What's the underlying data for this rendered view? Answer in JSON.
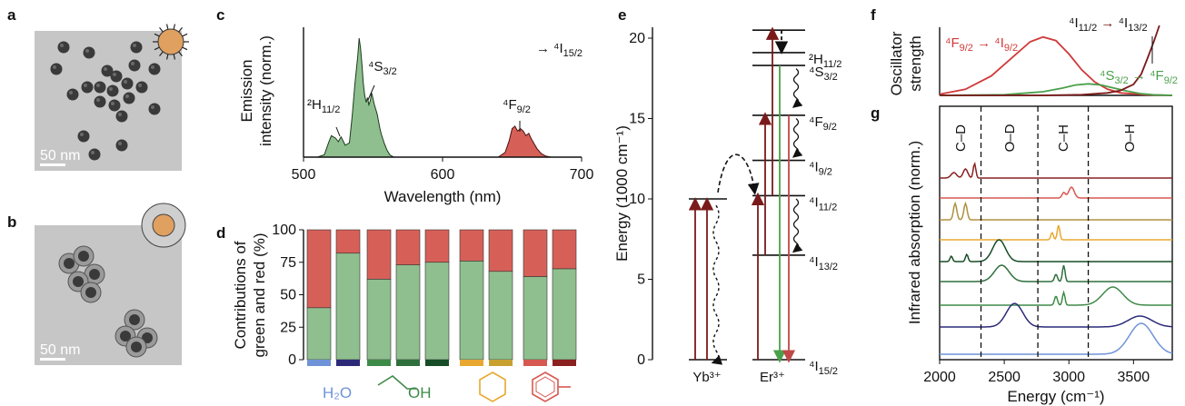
{
  "panels": {
    "a": {
      "label": "a",
      "scalebar": "50 nm"
    },
    "b": {
      "label": "b",
      "scalebar": "50 nm"
    },
    "c": {
      "label": "c"
    },
    "d": {
      "label": "d"
    },
    "e": {
      "label": "e"
    },
    "f": {
      "label": "f"
    },
    "g": {
      "label": "g"
    }
  },
  "colors": {
    "green": "#8fbf8f",
    "red": "#d66058",
    "darkred": "#7a1a1a",
    "curve_red": "#d03a3a",
    "curve_green": "#4aa04a",
    "particle": "#e0a060"
  },
  "chart_data": [
    {
      "id": "c",
      "type": "area",
      "xlabel": "Wavelength (nm)",
      "ylabel_line1": "Emission",
      "ylabel_line2": "intensity (norm.)",
      "xlim": [
        500,
        700
      ],
      "xticks": [
        500,
        600,
        700
      ],
      "ylim": [
        0,
        1
      ],
      "annotations": {
        "h11": {
          "main": "²H",
          "sub": "11/2"
        },
        "s32": {
          "main": "⁴S",
          "sub": "3/2"
        },
        "f92": {
          "main": "⁴F",
          "sub": "9/2"
        },
        "target": {
          "prefix": "→",
          "main": "⁴I",
          "sub": "15/2"
        }
      },
      "green_band": {
        "x": [
          510,
          515,
          518,
          520,
          523,
          525,
          527,
          530,
          533,
          535,
          537,
          539,
          540,
          541,
          542,
          543,
          544,
          545,
          546,
          547,
          548,
          549,
          550,
          551,
          552,
          553,
          554,
          555,
          556,
          558,
          560,
          562,
          565
        ],
        "y": [
          0,
          0.02,
          0.12,
          0.18,
          0.16,
          0.13,
          0.17,
          0.1,
          0.12,
          0.35,
          0.62,
          0.85,
          1.0,
          0.92,
          0.78,
          0.62,
          0.52,
          0.46,
          0.5,
          0.44,
          0.47,
          0.54,
          0.49,
          0.44,
          0.4,
          0.36,
          0.3,
          0.24,
          0.19,
          0.12,
          0.06,
          0.02,
          0
        ]
      },
      "red_band": {
        "x": [
          640,
          645,
          648,
          650,
          652,
          654,
          656,
          658,
          660,
          662,
          664,
          666,
          668,
          671,
          674,
          678
        ],
        "y": [
          0,
          0.04,
          0.14,
          0.24,
          0.26,
          0.22,
          0.24,
          0.22,
          0.18,
          0.2,
          0.15,
          0.11,
          0.07,
          0.03,
          0.01,
          0
        ]
      }
    },
    {
      "id": "d",
      "type": "bar",
      "ylabel_line1": "Contributions of",
      "ylabel_line2": "green and red (%)",
      "ylim": [
        0,
        100
      ],
      "yticks": [
        0,
        25,
        50,
        75,
        100
      ],
      "series": [
        {
          "values": [
            40,
            82,
            62,
            73,
            75,
            76,
            68,
            64,
            70
          ]
        },
        {
          "values": [
            60,
            18,
            38,
            27,
            25,
            24,
            32,
            36,
            30
          ]
        }
      ],
      "category_colors": [
        "#6f93d8",
        "#2c2a78",
        "#3e8a48",
        "#2f6f3c",
        "#164d26",
        "#e8a830",
        "#c8a030",
        "#d65850",
        "#8a2020"
      ],
      "groups": [
        {
          "label": "H₂O",
          "bars": [
            0,
            1
          ]
        },
        {
          "label": "OH",
          "bars": [
            2,
            3,
            4
          ]
        },
        {
          "label": "cyclohexane",
          "bars": [
            5,
            6
          ]
        },
        {
          "label": "toluene",
          "bars": [
            7,
            8
          ]
        }
      ],
      "group_colors": [
        "#6f93d8",
        "#3e8a48",
        "#e8a830",
        "#d65850"
      ]
    },
    {
      "id": "e",
      "type": "diagram",
      "ylabel": "Energy (1000 cm⁻¹)",
      "ylim": [
        0,
        20
      ],
      "yticks": [
        0,
        5,
        10,
        15,
        20
      ],
      "yb_label": "Yb³⁺",
      "er_label": "Er³⁺",
      "yb_levels": [
        0,
        10
      ],
      "er_levels": [
        {
          "energy": 0,
          "main": "⁴I",
          "sub": "15/2"
        },
        {
          "energy": 6.5,
          "main": "⁴I",
          "sub": "13/2"
        },
        {
          "energy": 10.2,
          "main": "⁴I",
          "sub": "11/2"
        },
        {
          "energy": 12.4,
          "main": "⁴I",
          "sub": "9/2"
        },
        {
          "energy": 15.2,
          "main": "⁴F",
          "sub": "9/2"
        },
        {
          "energy": 18.3,
          "main": "⁴S",
          "sub": "3/2"
        },
        {
          "energy": 19.1,
          "main": "²H",
          "sub": "11/2"
        },
        {
          "energy": 20.5,
          "main": "",
          "sub": ""
        }
      ]
    },
    {
      "id": "f",
      "type": "line",
      "ylabel_line1": "Oscillator",
      "ylabel_line2": "strength",
      "xlim": [
        2000,
        3800
      ],
      "labels": {
        "red": {
          "a": "⁴F",
          "asub": "9/2",
          "b": "⁴I",
          "bsub": "9/2"
        },
        "darkred": {
          "a": "⁴I",
          "asub": "11/2",
          "b": "⁴I",
          "bsub": "13/2"
        },
        "green": {
          "a": "⁴S",
          "asub": "3/2",
          "b": "⁴F",
          "bsub": "9/2"
        }
      },
      "series": [
        {
          "x": [
            2000,
            2200,
            2400,
            2550,
            2700,
            2800,
            2900,
            3000,
            3100,
            3200,
            3300,
            3400,
            3600,
            3800
          ],
          "y": [
            0.02,
            0.1,
            0.32,
            0.6,
            0.88,
            0.96,
            0.9,
            0.68,
            0.42,
            0.22,
            0.1,
            0.04,
            0.01,
            0
          ]
        },
        {
          "x": [
            2000,
            2500,
            2800,
            2950,
            3050,
            3150,
            3250,
            3350,
            3450,
            3550,
            3650,
            3800
          ],
          "y": [
            0,
            0.01,
            0.06,
            0.12,
            0.17,
            0.19,
            0.17,
            0.12,
            0.07,
            0.03,
            0.01,
            0
          ]
        },
        {
          "x": [
            2000,
            2800,
            3100,
            3300,
            3400,
            3500,
            3560,
            3610,
            3660,
            3700
          ],
          "y": [
            0,
            0,
            0.01,
            0.04,
            0.08,
            0.18,
            0.35,
            0.62,
            0.9,
            1.15
          ]
        }
      ]
    },
    {
      "id": "g",
      "type": "line",
      "xlabel": "Energy (cm⁻¹)",
      "ylabel": "Infrared absorption (norm.)",
      "xlim": [
        2000,
        3800
      ],
      "xticks": [
        2000,
        2500,
        3000,
        3500
      ],
      "regions": [
        "C–D",
        "O–D",
        "C–H",
        "O–H"
      ],
      "dividers": [
        2320,
        2760,
        3150
      ],
      "trace_colors": [
        "#8a2020",
        "#d65850",
        "#b09040",
        "#e8a830",
        "#164d26",
        "#2f6f3c",
        "#3e8a48",
        "#2c2a78",
        "#6f93d8"
      ]
    }
  ]
}
